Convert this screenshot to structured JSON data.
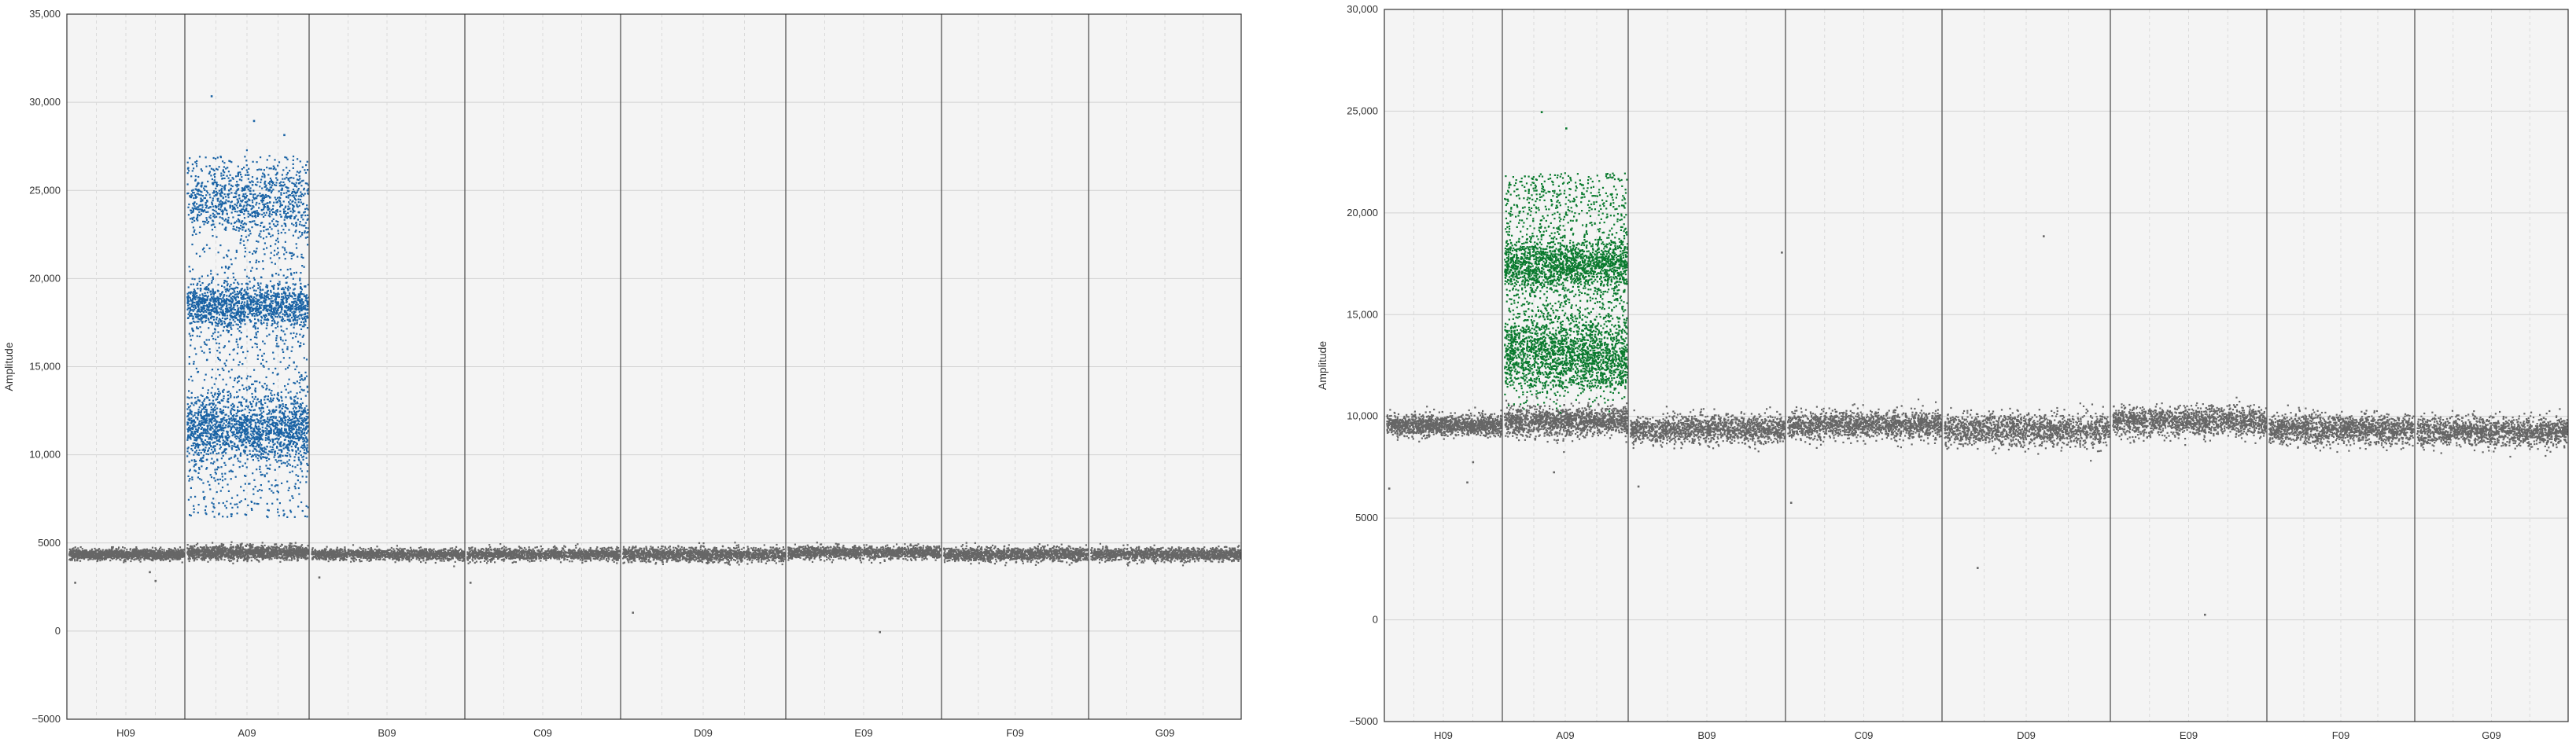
{
  "chart_data": [
    {
      "type": "scatter",
      "title": "",
      "xlabel": "",
      "ylabel": "Amplitude",
      "ylim": [
        -5000,
        35000
      ],
      "yticks": [
        -5000,
        0,
        5000,
        10000,
        15000,
        20000,
        25000,
        30000,
        35000
      ],
      "ytick_labels": [
        "−5000",
        "0",
        "5000",
        "10,000",
        "15,000",
        "20,000",
        "25,000",
        "30,000",
        "35,000"
      ],
      "grid": true,
      "legend": "none",
      "categories": [
        "H09",
        "A09",
        "B09",
        "C09",
        "D09",
        "E09",
        "F09",
        "G09"
      ],
      "positive_color": "#1a63a5",
      "negative_color": "#666666",
      "series": [
        {
          "well": "H09",
          "bands": [
            {
              "center": 4400,
              "spread": 150,
              "count": 1400,
              "color": "negative"
            }
          ],
          "scatter": [],
          "outliers": [
            [
              0.05,
              2800
            ],
            [
              0.7,
              3400
            ],
            [
              0.75,
              2900
            ]
          ]
        },
        {
          "well": "A09",
          "bands": [
            {
              "center": 4500,
              "spread": 200,
              "count": 1400,
              "color": "negative"
            },
            {
              "center": 11500,
              "spread": 900,
              "count": 1500,
              "color": "positive"
            },
            {
              "center": 18500,
              "spread": 600,
              "count": 1200,
              "color": "positive"
            },
            {
              "center": 24500,
              "spread": 900,
              "count": 700,
              "color": "positive"
            }
          ],
          "scatter": [
            {
              "min": 6500,
              "max": 27000,
              "count": 1300,
              "color": "positive"
            }
          ],
          "outliers": [
            [
              0.2,
              30400
            ],
            [
              0.55,
              29000
            ],
            [
              0.8,
              28200
            ]
          ]
        },
        {
          "well": "B09",
          "bands": [
            {
              "center": 4400,
              "spread": 160,
              "count": 1400,
              "color": "negative"
            }
          ],
          "scatter": [],
          "outliers": [
            [
              0.05,
              3100
            ]
          ]
        },
        {
          "well": "C09",
          "bands": [
            {
              "center": 4400,
              "spread": 160,
              "count": 1400,
              "color": "negative"
            }
          ],
          "scatter": [],
          "outliers": [
            [
              0.02,
              2800
            ]
          ]
        },
        {
          "well": "D09",
          "bands": [
            {
              "center": 4400,
              "spread": 200,
              "count": 1500,
              "color": "negative"
            }
          ],
          "scatter": [],
          "outliers": [
            [
              0.06,
              1100
            ]
          ]
        },
        {
          "well": "E09",
          "bands": [
            {
              "center": 4500,
              "spread": 180,
              "count": 1400,
              "color": "negative"
            }
          ],
          "scatter": [],
          "outliers": [
            [
              0.6,
              0
            ]
          ]
        },
        {
          "well": "F09",
          "bands": [
            {
              "center": 4400,
              "spread": 200,
              "count": 1400,
              "color": "negative"
            }
          ],
          "scatter": [],
          "outliers": []
        },
        {
          "well": "G09",
          "bands": [
            {
              "center": 4400,
              "spread": 180,
              "count": 1400,
              "color": "negative"
            }
          ],
          "scatter": [],
          "outliers": []
        }
      ]
    },
    {
      "type": "scatter",
      "title": "",
      "xlabel": "",
      "ylabel": "Amplitude",
      "ylim": [
        -5000,
        30000
      ],
      "yticks": [
        -5000,
        0,
        5000,
        10000,
        15000,
        20000,
        25000,
        30000
      ],
      "ytick_labels": [
        "−5000",
        "0",
        "5000",
        "10,000",
        "15,000",
        "20,000",
        "25,000",
        "30,000"
      ],
      "grid": true,
      "legend": "none",
      "categories": [
        "H09",
        "A09",
        "B09",
        "C09",
        "D09",
        "E09",
        "F09",
        "G09"
      ],
      "positive_color": "#0a7a2e",
      "negative_color": "#666666",
      "series": [
        {
          "well": "H09",
          "bands": [
            {
              "center": 9600,
              "spread": 250,
              "count": 1400,
              "color": "negative"
            }
          ],
          "scatter": [],
          "outliers": [
            [
              0.02,
              6500
            ],
            [
              0.7,
              6800
            ],
            [
              0.75,
              7800
            ]
          ]
        },
        {
          "well": "A09",
          "bands": [
            {
              "center": 9800,
              "spread": 350,
              "count": 1400,
              "color": "negative"
            },
            {
              "center": 13000,
              "spread": 900,
              "count": 1500,
              "color": "positive"
            },
            {
              "center": 17500,
              "spread": 600,
              "count": 1300,
              "color": "positive"
            }
          ],
          "scatter": [
            {
              "min": 11500,
              "max": 22000,
              "count": 1500,
              "color": "positive"
            }
          ],
          "outliers": [
            [
              0.3,
              25000
            ],
            [
              0.5,
              24200
            ],
            [
              0.4,
              7300
            ]
          ]
        },
        {
          "well": "B09",
          "bands": [
            {
              "center": 9400,
              "spread": 350,
              "count": 1500,
              "color": "negative"
            }
          ],
          "scatter": [],
          "outliers": [
            [
              0.05,
              6600
            ],
            [
              0.98,
              18100
            ]
          ]
        },
        {
          "well": "C09",
          "bands": [
            {
              "center": 9600,
              "spread": 350,
              "count": 1500,
              "color": "negative"
            }
          ],
          "scatter": [],
          "outliers": [
            [
              0.02,
              5800
            ]
          ]
        },
        {
          "well": "D09",
          "bands": [
            {
              "center": 9400,
              "spread": 400,
              "count": 1500,
              "color": "negative"
            }
          ],
          "scatter": [],
          "outliers": [
            [
              0.6,
              18900
            ],
            [
              0.2,
              2600
            ]
          ]
        },
        {
          "well": "E09",
          "bands": [
            {
              "center": 9800,
              "spread": 350,
              "count": 1500,
              "color": "negative"
            }
          ],
          "scatter": [],
          "outliers": [
            [
              0.6,
              300
            ]
          ]
        },
        {
          "well": "F09",
          "bands": [
            {
              "center": 9400,
              "spread": 350,
              "count": 1500,
              "color": "negative"
            }
          ],
          "scatter": [],
          "outliers": []
        },
        {
          "well": "G09",
          "bands": [
            {
              "center": 9300,
              "spread": 350,
              "count": 1500,
              "color": "negative"
            }
          ],
          "scatter": [],
          "outliers": []
        }
      ]
    }
  ]
}
